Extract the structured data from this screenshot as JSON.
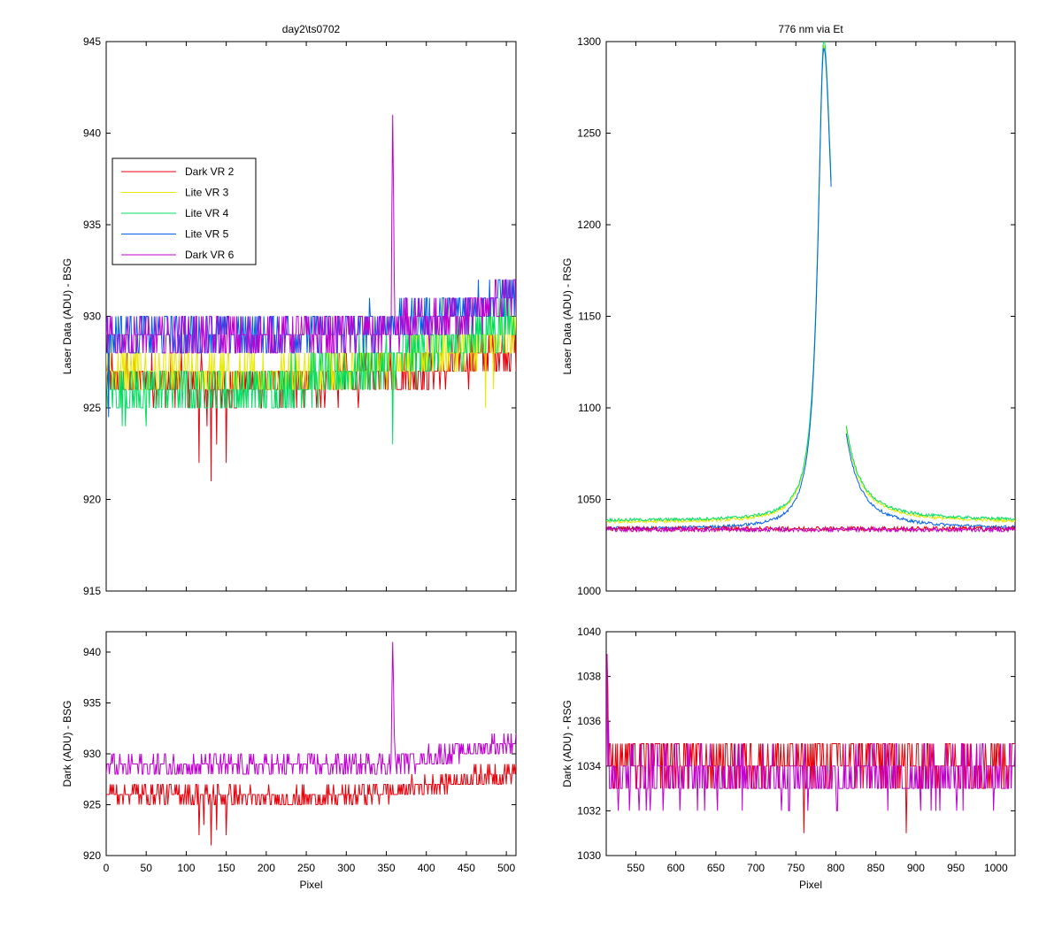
{
  "chart_data": [
    {
      "panel": "top-left",
      "type": "line",
      "title": "day2\\ts0702",
      "xlabel": "",
      "ylabel": "Laser Data (ADU) - BSG",
      "xlim": [
        0,
        512
      ],
      "ylim": [
        915,
        945
      ],
      "xticks": [
        0,
        50,
        100,
        150,
        200,
        250,
        300,
        350,
        400,
        450,
        500
      ],
      "yticks": [
        915,
        920,
        925,
        930,
        935,
        940,
        945
      ],
      "show_xtick_labels": false,
      "legend": {
        "placement": "left",
        "entries": [
          "Dark VR 2",
          "Lite VR 3",
          "Lite VR 4",
          "Lite VR 5",
          "Dark VR 6"
        ]
      },
      "series": [
        {
          "name": "Dark VR 2",
          "color": "#e8000b",
          "baseline": [
            [
              0,
              926.6
            ],
            [
              200,
              926.2
            ],
            [
              400,
              927.0
            ],
            [
              512,
              928.4
            ]
          ],
          "noise": 1.0,
          "spikes": [
            [
              116,
              922
            ],
            [
              126,
              924
            ],
            [
              131,
              921
            ],
            [
              138,
              923
            ],
            [
              150,
              922
            ]
          ]
        },
        {
          "name": "Lite VR 3",
          "color": "#e8e800",
          "baseline": [
            [
              0,
              927.0
            ],
            [
              200,
              926.7
            ],
            [
              400,
              927.7
            ],
            [
              512,
              929.0
            ]
          ],
          "noise": 1.0,
          "spikes": [
            [
              474,
              925
            ],
            [
              484,
              926
            ]
          ]
        },
        {
          "name": "Lite VR 4",
          "color": "#00e060",
          "baseline": [
            [
              0,
              925.8
            ],
            [
              200,
              926.0
            ],
            [
              400,
              928.0
            ],
            [
              512,
              929.8
            ]
          ],
          "noise": 1.2,
          "spikes": [
            [
              358,
              923
            ],
            [
              50,
              924
            ]
          ]
        },
        {
          "name": "Lite VR 5",
          "color": "#0060e8",
          "baseline": [
            [
              0,
              929.0
            ],
            [
              200,
              929.0
            ],
            [
              400,
              929.7
            ],
            [
              512,
              931.2
            ]
          ],
          "noise": 1.0,
          "spikes": [
            [
              3,
              924.5
            ]
          ]
        },
        {
          "name": "Dark VR 6",
          "color": "#c000d0",
          "baseline": [
            [
              0,
              928.8
            ],
            [
              200,
              928.8
            ],
            [
              400,
              929.5
            ],
            [
              512,
              931.0
            ]
          ],
          "noise": 1.0,
          "spikes": [
            [
              357,
              936
            ],
            [
              358,
              941
            ],
            [
              359,
              937
            ],
            [
              360,
              932
            ]
          ]
        }
      ]
    },
    {
      "panel": "top-right",
      "type": "line",
      "title": "776 nm via Et",
      "xlabel": "",
      "ylabel": "Laser Data (ADU) - RSG",
      "xlim": [
        513,
        1024
      ],
      "ylim": [
        1000,
        1300
      ],
      "xticks": [
        550,
        600,
        650,
        700,
        750,
        800,
        850,
        900,
        950,
        1000
      ],
      "yticks": [
        1000,
        1050,
        1100,
        1150,
        1200,
        1250,
        1300
      ],
      "show_xtick_labels": false,
      "peak": {
        "center": 785,
        "gap": [
          795,
          812
        ]
      },
      "series": [
        {
          "name": "Lite VR 3",
          "color": "#e8e800",
          "kind": "peak",
          "floor": 1036.5,
          "height": 261,
          "offset": 1.0
        },
        {
          "name": "Lite VR 4",
          "color": "#00e060",
          "kind": "peak",
          "floor": 1037.0,
          "height": 262,
          "offset": 1.5
        },
        {
          "name": "Lite VR 5",
          "color": "#0060e8",
          "kind": "peak",
          "floor": 1035.0,
          "height": 263,
          "offset": -1.0
        },
        {
          "name": "Dark VR 2",
          "color": "#e8000b",
          "kind": "flat",
          "level": 1034.0,
          "noise": 1.0
        },
        {
          "name": "Dark VR 6",
          "color": "#c000d0",
          "kind": "flat",
          "level": 1033.5,
          "noise": 1.0
        }
      ]
    },
    {
      "panel": "bottom-left",
      "type": "line",
      "title": "",
      "xlabel": "Pixel",
      "ylabel": "Dark (ADU) - BSG",
      "xlim": [
        0,
        512
      ],
      "ylim": [
        920,
        942
      ],
      "xticks": [
        0,
        50,
        100,
        150,
        200,
        250,
        300,
        350,
        400,
        450,
        500
      ],
      "yticks": [
        920,
        925,
        930,
        935,
        940
      ],
      "show_xtick_labels": true,
      "series": [
        {
          "name": "Dark VR 2",
          "color": "#e8000b",
          "baseline": [
            [
              0,
              926.2
            ],
            [
              100,
              926.0
            ],
            [
              200,
              925.6
            ],
            [
              300,
              925.8
            ],
            [
              400,
              926.8
            ],
            [
              512,
              928.4
            ]
          ],
          "noise": 0.8,
          "spikes": [
            [
              116,
              922
            ],
            [
              122,
              923
            ],
            [
              131,
              921
            ],
            [
              138,
              922.5
            ],
            [
              150,
              922
            ]
          ]
        },
        {
          "name": "Dark VR 6",
          "color": "#c000d0",
          "baseline": [
            [
              0,
              928.8
            ],
            [
              200,
              928.8
            ],
            [
              350,
              929.0
            ],
            [
              400,
              929.6
            ],
            [
              512,
              931.2
            ]
          ],
          "noise": 0.8,
          "spikes": [
            [
              357,
              936
            ],
            [
              358,
              941
            ],
            [
              359,
              937
            ],
            [
              360,
              932
            ]
          ]
        }
      ]
    },
    {
      "panel": "bottom-right",
      "type": "line",
      "title": "",
      "xlabel": "Pixel",
      "ylabel": "Dark (ADU) - RSG",
      "xlim": [
        513,
        1024
      ],
      "ylim": [
        1030,
        1040
      ],
      "xticks": [
        550,
        600,
        650,
        700,
        750,
        800,
        850,
        900,
        950,
        1000
      ],
      "yticks": [
        1030,
        1032,
        1034,
        1036,
        1038,
        1040
      ],
      "show_xtick_labels": true,
      "series": [
        {
          "name": "Dark VR 2",
          "color": "#e8000b",
          "baseline": [
            [
              513,
              1034.3
            ],
            [
              1024,
              1034.3
            ]
          ],
          "noise": 1.0,
          "spikes": [
            [
              514,
              1039
            ],
            [
              515,
              1037.5
            ],
            [
              760,
              1031
            ],
            [
              888,
              1031
            ]
          ]
        },
        {
          "name": "Dark VR 6",
          "color": "#c000d0",
          "baseline": [
            [
              513,
              1033.6
            ],
            [
              1024,
              1033.6
            ]
          ],
          "noise": 1.0,
          "spikes": [
            [
              514,
              1039
            ],
            [
              516,
              1036
            ]
          ]
        }
      ]
    }
  ]
}
